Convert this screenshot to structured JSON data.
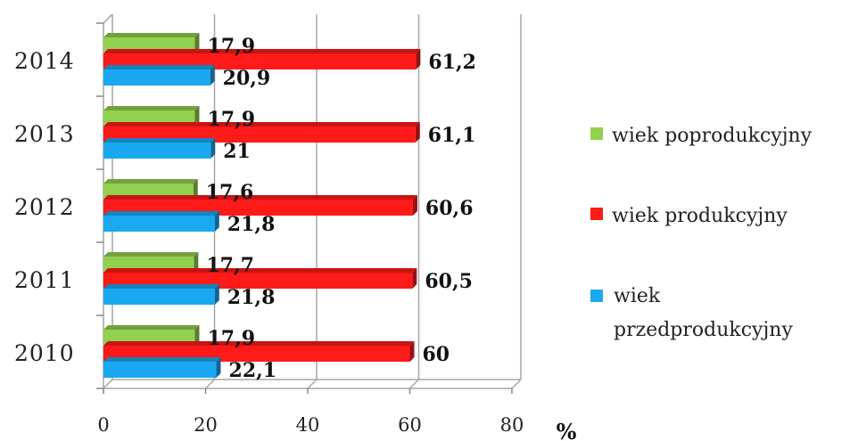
{
  "chart_data": {
    "type": "bar",
    "orientation": "horizontal",
    "categories": [
      "2010",
      "2011",
      "2012",
      "2013",
      "2014"
    ],
    "series": [
      {
        "name": "wiek przedprodukcyjny",
        "color": "#1aa9f0",
        "values": [
          22.1,
          21.8,
          21.8,
          21,
          20.9
        ],
        "labels": [
          "22,1",
          "21,8",
          "21,8",
          "21",
          "20,9"
        ]
      },
      {
        "name": "wiek produkcyjny",
        "color": "#ff1a1a",
        "values": [
          60,
          60.5,
          60.6,
          61.1,
          61.2
        ],
        "labels": [
          "60",
          "60,5",
          "60,6",
          "61,1",
          "61,2"
        ]
      },
      {
        "name": "wiek poprodukcyjny",
        "color": "#92d050",
        "values": [
          17.9,
          17.7,
          17.6,
          17.9,
          17.9
        ],
        "labels": [
          "17,9",
          "17,7",
          "17,6",
          "17,9",
          "17,9"
        ]
      }
    ],
    "xlim": [
      0,
      80
    ],
    "xticks": [
      "0",
      "20",
      "40",
      "60",
      "80"
    ],
    "xunit": "%",
    "grid": true,
    "legend_position": "right",
    "legend_order": [
      "wiek poprodukcyjny",
      "wiek produkcyjny",
      "wiek przedprodukcyjny"
    ]
  }
}
